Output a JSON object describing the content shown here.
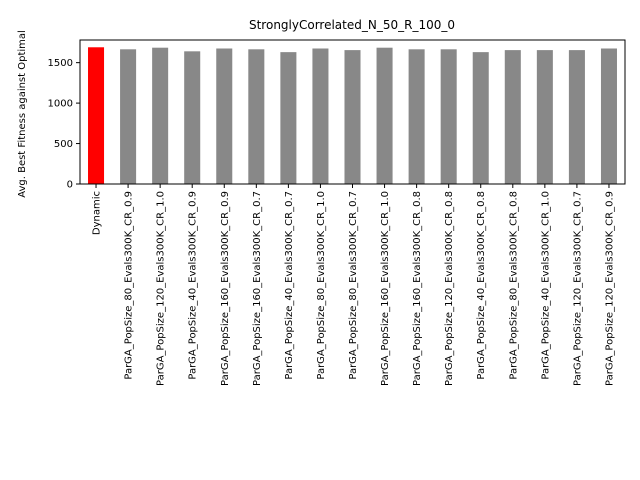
{
  "chart_data": {
    "type": "bar",
    "title": "StronglyCorrelated_N_50_R_100_0",
    "xlabel": "",
    "ylabel": "Avg. Best Fitness against Optimal",
    "ylim": [
      0,
      1780
    ],
    "yticks": [
      0,
      500,
      1000,
      1500
    ],
    "grid": false,
    "legend": "none",
    "categories": [
      "Dynamic",
      "ParGA_PopSize_80_Evals300K_CR_0.9",
      "ParGA_PopSize_120_Evals300K_CR_1.0",
      "ParGA_PopSize_40_Evals300K_CR_0.9",
      "ParGA_PopSize_160_Evals300K_CR_0.9",
      "ParGA_PopSize_160_Evals300K_CR_0.7",
      "ParGA_PopSize_40_Evals300K_CR_0.7",
      "ParGA_PopSize_80_Evals300K_CR_1.0",
      "ParGA_PopSize_80_Evals300K_CR_0.7",
      "ParGA_PopSize_160_Evals300K_CR_1.0",
      "ParGA_PopSize_160_Evals300K_CR_0.8",
      "ParGA_PopSize_120_Evals300K_CR_0.8",
      "ParGA_PopSize_40_Evals300K_CR_0.8",
      "ParGA_PopSize_80_Evals300K_CR_0.8",
      "ParGA_PopSize_40_Evals300K_CR_1.0",
      "ParGA_PopSize_120_Evals300K_CR_0.7",
      "ParGA_PopSize_120_Evals300K_CR_0.9"
    ],
    "values": [
      1690,
      1665,
      1685,
      1640,
      1675,
      1665,
      1630,
      1675,
      1655,
      1685,
      1665,
      1665,
      1630,
      1655,
      1655,
      1655,
      1675
    ],
    "colors": [
      "#ff0000",
      "#888888",
      "#888888",
      "#888888",
      "#888888",
      "#888888",
      "#888888",
      "#888888",
      "#888888",
      "#888888",
      "#888888",
      "#888888",
      "#888888",
      "#888888",
      "#888888",
      "#888888",
      "#888888"
    ]
  }
}
